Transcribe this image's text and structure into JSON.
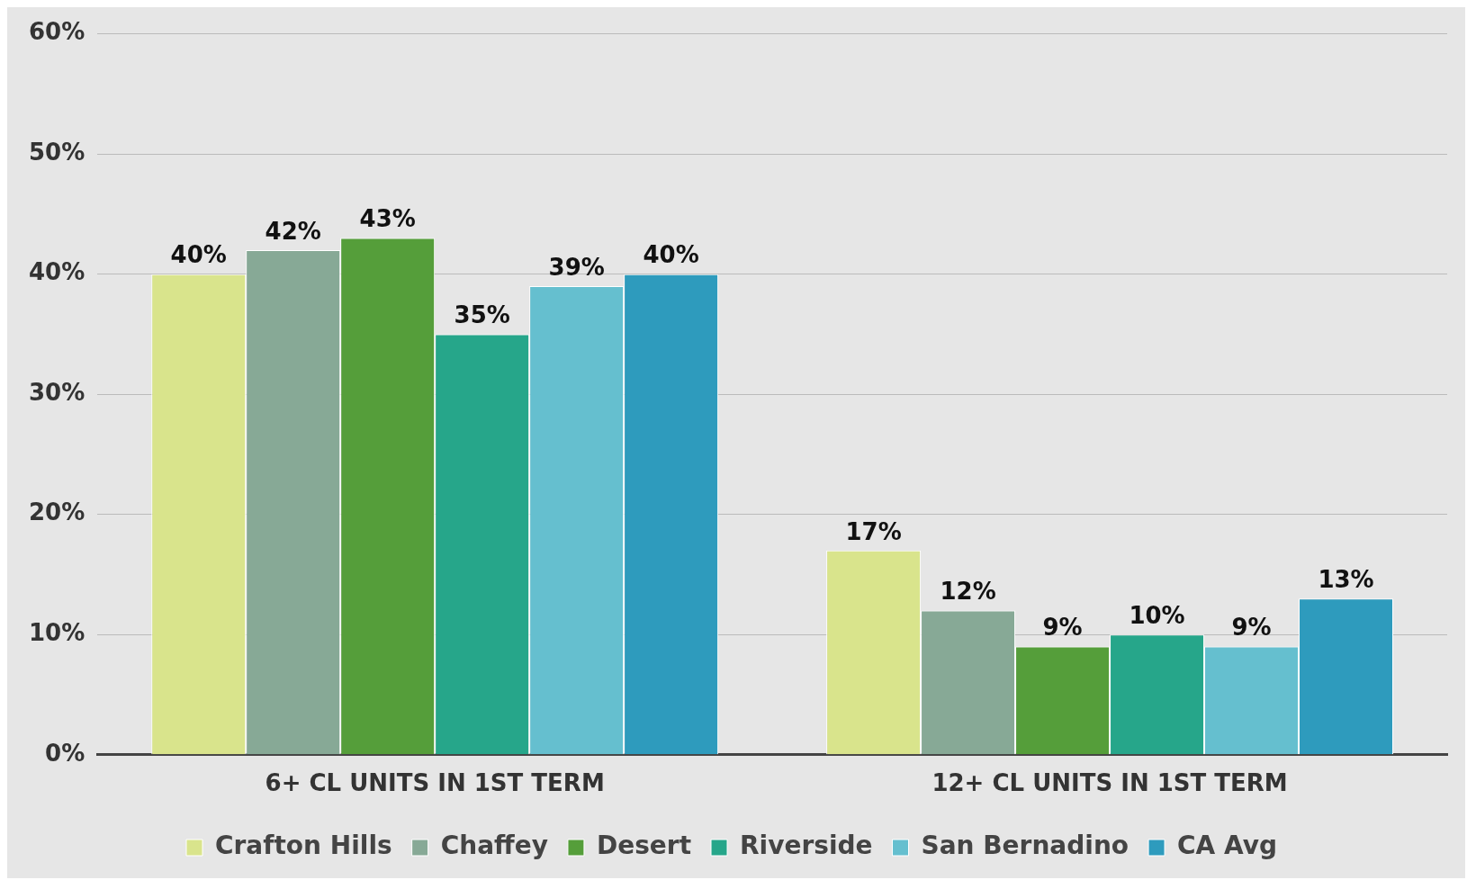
{
  "chart_data": {
    "type": "bar",
    "categories": [
      "6+ CL UNITS IN 1ST TERM",
      "12+ CL UNITS IN 1ST TERM"
    ],
    "series": [
      {
        "name": "Crafton Hills",
        "color": "#d9e48c",
        "values": [
          40,
          17
        ],
        "value_labels": [
          "40%",
          "17%"
        ]
      },
      {
        "name": "Chaffey",
        "color": "#87a996",
        "values": [
          42,
          12
        ],
        "value_labels": [
          "42%",
          "12%"
        ]
      },
      {
        "name": "Desert",
        "color": "#559e3a",
        "values": [
          43,
          9
        ],
        "value_labels": [
          "43%",
          "9%"
        ]
      },
      {
        "name": "Riverside",
        "color": "#26a68a",
        "values": [
          35,
          10
        ],
        "value_labels": [
          "35%",
          "10%"
        ]
      },
      {
        "name": "San Bernadino",
        "color": "#65bfcf",
        "values": [
          39,
          9
        ],
        "value_labels": [
          "39%",
          "9%"
        ]
      },
      {
        "name": "CA Avg",
        "color": "#2e9bbd",
        "values": [
          40,
          13
        ],
        "value_labels": [
          "40%",
          "13%"
        ]
      }
    ],
    "ylim": [
      0,
      60
    ],
    "yticks": [
      {
        "value": 0,
        "label": "0%"
      },
      {
        "value": 10,
        "label": "10%"
      },
      {
        "value": 20,
        "label": "20%"
      },
      {
        "value": 30,
        "label": "30%"
      },
      {
        "value": 40,
        "label": "40%"
      },
      {
        "value": 50,
        "label": "50%"
      },
      {
        "value": 60,
        "label": "60%"
      }
    ],
    "grid": "y",
    "legend": "bottom"
  }
}
